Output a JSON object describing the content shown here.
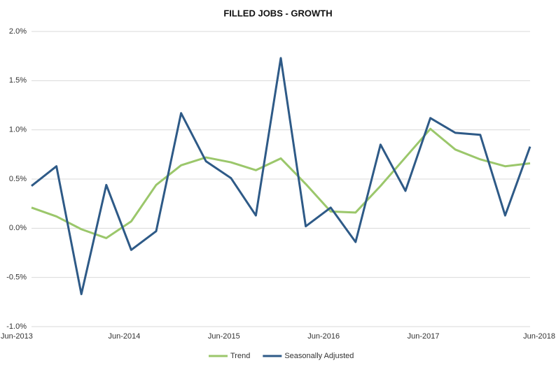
{
  "chart_data": {
    "type": "line",
    "title": "FILLED JOBS - GROWTH",
    "categories": [
      "Jun-2013",
      null,
      null,
      null,
      "Jun-2014",
      null,
      null,
      null,
      "Jun-2015",
      null,
      null,
      null,
      "Jun-2016",
      null,
      null,
      null,
      "Jun-2017",
      null,
      null,
      null,
      "Jun-2018"
    ],
    "series": [
      {
        "name": "Trend",
        "color": "#9bc76b",
        "values": [
          0.21,
          0.12,
          -0.01,
          -0.1,
          0.07,
          0.44,
          0.64,
          0.72,
          0.67,
          0.59,
          0.71,
          0.45,
          0.17,
          0.16,
          0.43,
          0.72,
          1.01,
          0.8,
          0.7,
          0.63,
          0.66
        ]
      },
      {
        "name": "Seasonally Adjusted",
        "color": "#2e5a87",
        "values": [
          0.43,
          0.63,
          -0.67,
          0.44,
          -0.22,
          -0.03,
          1.17,
          0.68,
          0.51,
          0.13,
          1.73,
          0.02,
          0.21,
          -0.14,
          0.85,
          0.38,
          1.12,
          0.97,
          0.95,
          0.13,
          0.83
        ]
      }
    ],
    "ylim": [
      -1,
      2
    ],
    "yticks": [
      {
        "value": -1,
        "label": "-1.0%"
      },
      {
        "value": -0.5,
        "label": "-0.5%"
      },
      {
        "value": 0,
        "label": "0.0%"
      },
      {
        "value": 0.5,
        "label": "0.5%"
      },
      {
        "value": 1,
        "label": "1.0%"
      },
      {
        "value": 1.5,
        "label": "1.5%"
      },
      {
        "value": 2,
        "label": "2.0%"
      }
    ],
    "grid": true,
    "legend": "bottom"
  }
}
